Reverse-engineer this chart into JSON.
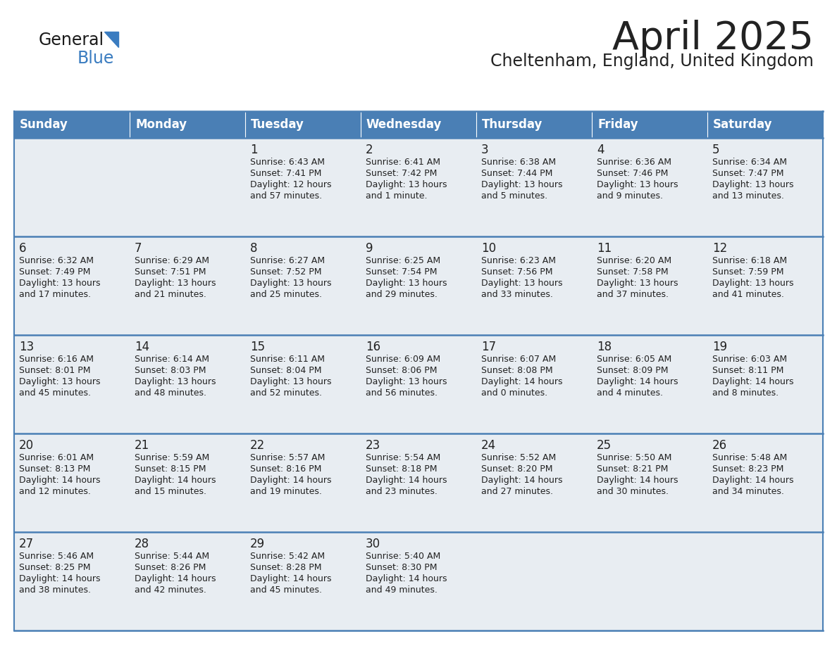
{
  "title": "April 2025",
  "subtitle": "Cheltenham, England, United Kingdom",
  "header_bg": "#4a7fb5",
  "header_text_color": "#ffffff",
  "cell_bg": "#e8edf2",
  "text_color": "#222222",
  "border_color": "#4a7fb5",
  "days_of_week": [
    "Sunday",
    "Monday",
    "Tuesday",
    "Wednesday",
    "Thursday",
    "Friday",
    "Saturday"
  ],
  "weeks": [
    [
      {
        "day": "",
        "sunrise": "",
        "sunset": "",
        "daylight": ""
      },
      {
        "day": "",
        "sunrise": "",
        "sunset": "",
        "daylight": ""
      },
      {
        "day": "1",
        "sunrise": "6:43 AM",
        "sunset": "7:41 PM",
        "daylight": "12 hours\nand 57 minutes."
      },
      {
        "day": "2",
        "sunrise": "6:41 AM",
        "sunset": "7:42 PM",
        "daylight": "13 hours\nand 1 minute."
      },
      {
        "day": "3",
        "sunrise": "6:38 AM",
        "sunset": "7:44 PM",
        "daylight": "13 hours\nand 5 minutes."
      },
      {
        "day": "4",
        "sunrise": "6:36 AM",
        "sunset": "7:46 PM",
        "daylight": "13 hours\nand 9 minutes."
      },
      {
        "day": "5",
        "sunrise": "6:34 AM",
        "sunset": "7:47 PM",
        "daylight": "13 hours\nand 13 minutes."
      }
    ],
    [
      {
        "day": "6",
        "sunrise": "6:32 AM",
        "sunset": "7:49 PM",
        "daylight": "13 hours\nand 17 minutes."
      },
      {
        "day": "7",
        "sunrise": "6:29 AM",
        "sunset": "7:51 PM",
        "daylight": "13 hours\nand 21 minutes."
      },
      {
        "day": "8",
        "sunrise": "6:27 AM",
        "sunset": "7:52 PM",
        "daylight": "13 hours\nand 25 minutes."
      },
      {
        "day": "9",
        "sunrise": "6:25 AM",
        "sunset": "7:54 PM",
        "daylight": "13 hours\nand 29 minutes."
      },
      {
        "day": "10",
        "sunrise": "6:23 AM",
        "sunset": "7:56 PM",
        "daylight": "13 hours\nand 33 minutes."
      },
      {
        "day": "11",
        "sunrise": "6:20 AM",
        "sunset": "7:58 PM",
        "daylight": "13 hours\nand 37 minutes."
      },
      {
        "day": "12",
        "sunrise": "6:18 AM",
        "sunset": "7:59 PM",
        "daylight": "13 hours\nand 41 minutes."
      }
    ],
    [
      {
        "day": "13",
        "sunrise": "6:16 AM",
        "sunset": "8:01 PM",
        "daylight": "13 hours\nand 45 minutes."
      },
      {
        "day": "14",
        "sunrise": "6:14 AM",
        "sunset": "8:03 PM",
        "daylight": "13 hours\nand 48 minutes."
      },
      {
        "day": "15",
        "sunrise": "6:11 AM",
        "sunset": "8:04 PM",
        "daylight": "13 hours\nand 52 minutes."
      },
      {
        "day": "16",
        "sunrise": "6:09 AM",
        "sunset": "8:06 PM",
        "daylight": "13 hours\nand 56 minutes."
      },
      {
        "day": "17",
        "sunrise": "6:07 AM",
        "sunset": "8:08 PM",
        "daylight": "14 hours\nand 0 minutes."
      },
      {
        "day": "18",
        "sunrise": "6:05 AM",
        "sunset": "8:09 PM",
        "daylight": "14 hours\nand 4 minutes."
      },
      {
        "day": "19",
        "sunrise": "6:03 AM",
        "sunset": "8:11 PM",
        "daylight": "14 hours\nand 8 minutes."
      }
    ],
    [
      {
        "day": "20",
        "sunrise": "6:01 AM",
        "sunset": "8:13 PM",
        "daylight": "14 hours\nand 12 minutes."
      },
      {
        "day": "21",
        "sunrise": "5:59 AM",
        "sunset": "8:15 PM",
        "daylight": "14 hours\nand 15 minutes."
      },
      {
        "day": "22",
        "sunrise": "5:57 AM",
        "sunset": "8:16 PM",
        "daylight": "14 hours\nand 19 minutes."
      },
      {
        "day": "23",
        "sunrise": "5:54 AM",
        "sunset": "8:18 PM",
        "daylight": "14 hours\nand 23 minutes."
      },
      {
        "day": "24",
        "sunrise": "5:52 AM",
        "sunset": "8:20 PM",
        "daylight": "14 hours\nand 27 minutes."
      },
      {
        "day": "25",
        "sunrise": "5:50 AM",
        "sunset": "8:21 PM",
        "daylight": "14 hours\nand 30 minutes."
      },
      {
        "day": "26",
        "sunrise": "5:48 AM",
        "sunset": "8:23 PM",
        "daylight": "14 hours\nand 34 minutes."
      }
    ],
    [
      {
        "day": "27",
        "sunrise": "5:46 AM",
        "sunset": "8:25 PM",
        "daylight": "14 hours\nand 38 minutes."
      },
      {
        "day": "28",
        "sunrise": "5:44 AM",
        "sunset": "8:26 PM",
        "daylight": "14 hours\nand 42 minutes."
      },
      {
        "day": "29",
        "sunrise": "5:42 AM",
        "sunset": "8:28 PM",
        "daylight": "14 hours\nand 45 minutes."
      },
      {
        "day": "30",
        "sunrise": "5:40 AM",
        "sunset": "8:30 PM",
        "daylight": "14 hours\nand 49 minutes."
      },
      {
        "day": "",
        "sunrise": "",
        "sunset": "",
        "daylight": ""
      },
      {
        "day": "",
        "sunrise": "",
        "sunset": "",
        "daylight": ""
      },
      {
        "day": "",
        "sunrise": "",
        "sunset": "",
        "daylight": ""
      }
    ]
  ],
  "logo_text1": "General",
  "logo_text2": "Blue",
  "logo_color1": "#1a1a1a",
  "logo_color2": "#3a7cc0",
  "triangle_color": "#3a7cc0"
}
